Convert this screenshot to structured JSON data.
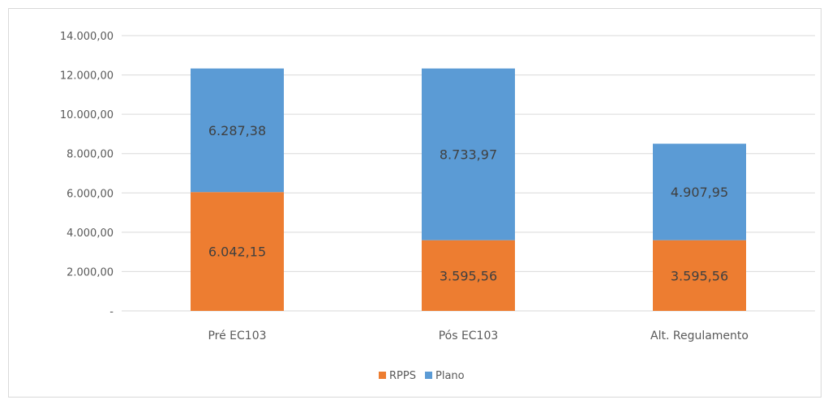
{
  "chart_data": {
    "type": "bar",
    "stacked": true,
    "categories": [
      "Pré EC103",
      "Pós EC103",
      "Alt. Regulamento"
    ],
    "series": [
      {
        "name": "RPPS",
        "values": [
          6042.15,
          3595.56,
          3595.56
        ],
        "labels": [
          "6.042,15",
          "3.595,56",
          "3.595,56"
        ]
      },
      {
        "name": "Plano",
        "values": [
          6287.38,
          8733.97,
          4907.95
        ],
        "labels": [
          "6.287,38",
          "8.733,97",
          "4.907,95"
        ]
      }
    ],
    "ylim": [
      0,
      14000
    ],
    "yticks": [
      0,
      2000,
      4000,
      6000,
      8000,
      10000,
      12000,
      14000
    ],
    "ytick_labels": [
      "-",
      "2.000,00",
      "4.000,00",
      "6.000,00",
      "8.000,00",
      "10.000,00",
      "12.000,00",
      "14.000,00"
    ],
    "grid": true,
    "legend": "bottom"
  },
  "colors": {
    "RPPS": "#ed7d31",
    "Plano": "#5b9bd5",
    "grid": "#d9d9d9"
  }
}
